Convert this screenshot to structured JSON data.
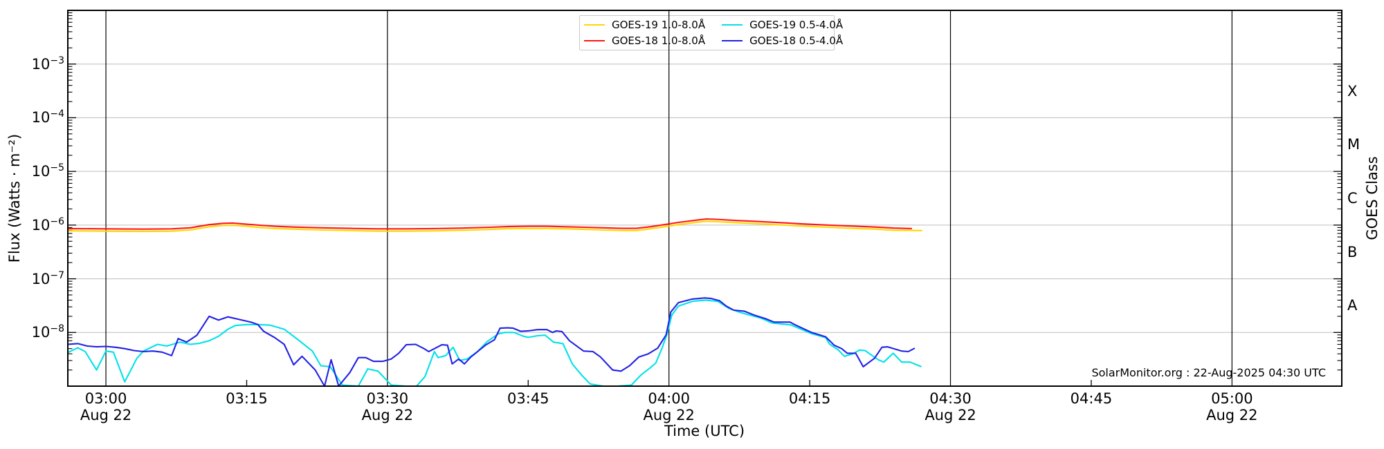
{
  "figure": {
    "background_color": "#ffffff",
    "annotation": "SolarMonitor.org : 22-Aug-2025 04:30 UTC"
  },
  "chart_data": {
    "type": "line",
    "title": "",
    "xlabel": "Time (UTC)",
    "ylabel": "Flux (Watts · m⁻²)",
    "ylabel_right": "GOES Class",
    "x_unit": "minutes after 03:00 UTC, 22 Aug 2025",
    "xlim_minutes": [
      -4.06,
      131.7
    ],
    "ylim": [
      1e-09,
      0.01
    ],
    "yscale": "log",
    "grid": {
      "vertical_gridline_color": "#000000",
      "horizontal_gridline_color": "#bdbdbd",
      "frame_color": "#000000"
    },
    "legend_position": "top-center",
    "x_ticks": [
      {
        "minutes": 0,
        "label": "03:00",
        "sub": "Aug 22",
        "gridline": true
      },
      {
        "minutes": 15,
        "label": "03:15",
        "sub": "",
        "gridline": false
      },
      {
        "minutes": 30,
        "label": "03:30",
        "sub": "Aug 22",
        "gridline": true
      },
      {
        "minutes": 45,
        "label": "03:45",
        "sub": "",
        "gridline": false
      },
      {
        "minutes": 60,
        "label": "04:00",
        "sub": "Aug 22",
        "gridline": true
      },
      {
        "minutes": 75,
        "label": "04:15",
        "sub": "",
        "gridline": false
      },
      {
        "minutes": 90,
        "label": "04:30",
        "sub": "Aug 22",
        "gridline": true
      },
      {
        "minutes": 105,
        "label": "04:45",
        "sub": "",
        "gridline": false
      },
      {
        "minutes": 120,
        "label": "05:00",
        "sub": "Aug 22",
        "gridline": true
      }
    ],
    "y_ticks": [
      {
        "exponent": -3,
        "label": "10⁻³",
        "exp_label": "−3"
      },
      {
        "exponent": -4,
        "label": "10⁻⁴",
        "exp_label": "−4"
      },
      {
        "exponent": -5,
        "label": "10⁻⁵",
        "exp_label": "−5"
      },
      {
        "exponent": -6,
        "label": "10⁻⁶",
        "exp_label": "−6"
      },
      {
        "exponent": -7,
        "label": "10⁻⁷",
        "exp_label": "−7"
      },
      {
        "exponent": -8,
        "label": "10⁻⁸",
        "exp_label": "−8"
      }
    ],
    "goes_classes": [
      {
        "label": "X",
        "center_exponent": -3.5
      },
      {
        "label": "M",
        "center_exponent": -4.5
      },
      {
        "label": "C",
        "center_exponent": -5.5
      },
      {
        "label": "B",
        "center_exponent": -6.5
      },
      {
        "label": "A",
        "center_exponent": -7.5
      }
    ],
    "series": [
      {
        "name": "GOES-19 1.0-8.0Å",
        "color": "#FFD700",
        "points": [
          [
            -4.1,
            7.8e-07
          ],
          [
            0,
            7.7e-07
          ],
          [
            4,
            7.6e-07
          ],
          [
            7,
            7.7e-07
          ],
          [
            9,
            8.1e-07
          ],
          [
            11,
            9.3e-07
          ],
          [
            12.5,
            9.8e-07
          ],
          [
            13.5,
            9.9e-07
          ],
          [
            15,
            9.5e-07
          ],
          [
            16.5,
            9e-07
          ],
          [
            18,
            8.6e-07
          ],
          [
            20,
            8.4e-07
          ],
          [
            23,
            8.1e-07
          ],
          [
            26,
            7.9e-07
          ],
          [
            29,
            7.7e-07
          ],
          [
            32,
            7.7e-07
          ],
          [
            35,
            7.8e-07
          ],
          [
            38,
            8e-07
          ],
          [
            41,
            8.3e-07
          ],
          [
            43,
            8.6e-07
          ],
          [
            45,
            8.6e-07
          ],
          [
            47,
            8.6e-07
          ],
          [
            49,
            8.5e-07
          ],
          [
            51,
            8.3e-07
          ],
          [
            53,
            8.1e-07
          ],
          [
            55,
            7.9e-07
          ],
          [
            56.5,
            7.9e-07
          ],
          [
            58,
            8.5e-07
          ],
          [
            59.5,
            9.3e-07
          ],
          [
            61,
            1.02e-06
          ],
          [
            63,
            1.13e-06
          ],
          [
            64,
            1.18e-06
          ],
          [
            65,
            1.16e-06
          ],
          [
            67,
            1.11e-06
          ],
          [
            69,
            1.07e-06
          ],
          [
            71,
            1.03e-06
          ],
          [
            74,
            9.6e-07
          ],
          [
            77,
            9.1e-07
          ],
          [
            80,
            8.6e-07
          ],
          [
            82,
            8.4e-07
          ],
          [
            84,
            8e-07
          ],
          [
            87,
            7.9e-07
          ]
        ]
      },
      {
        "name": "GOES-18 1.0-8.0Å",
        "color": "#FF1612",
        "points": [
          [
            -4.1,
            8.6e-07
          ],
          [
            0,
            8.5e-07
          ],
          [
            4,
            8.4e-07
          ],
          [
            7,
            8.5e-07
          ],
          [
            9,
            8.9e-07
          ],
          [
            11,
            1.02e-06
          ],
          [
            12.5,
            1.08e-06
          ],
          [
            13.5,
            1.09e-06
          ],
          [
            15,
            1.04e-06
          ],
          [
            16.5,
            9.9e-07
          ],
          [
            18,
            9.5e-07
          ],
          [
            20,
            9.2e-07
          ],
          [
            23,
            8.9e-07
          ],
          [
            26,
            8.7e-07
          ],
          [
            29,
            8.5e-07
          ],
          [
            32,
            8.5e-07
          ],
          [
            35,
            8.6e-07
          ],
          [
            38,
            8.8e-07
          ],
          [
            41,
            9.1e-07
          ],
          [
            43,
            9.4e-07
          ],
          [
            45,
            9.5e-07
          ],
          [
            47,
            9.5e-07
          ],
          [
            49,
            9.3e-07
          ],
          [
            51,
            9.1e-07
          ],
          [
            53,
            8.9e-07
          ],
          [
            55,
            8.7e-07
          ],
          [
            56.5,
            8.7e-07
          ],
          [
            58,
            9.3e-07
          ],
          [
            59.5,
            1.02e-06
          ],
          [
            61,
            1.12e-06
          ],
          [
            63,
            1.24e-06
          ],
          [
            64,
            1.3e-06
          ],
          [
            65,
            1.28e-06
          ],
          [
            67,
            1.22e-06
          ],
          [
            69,
            1.18e-06
          ],
          [
            71,
            1.13e-06
          ],
          [
            74,
            1.06e-06
          ],
          [
            77,
            1e-06
          ],
          [
            80,
            9.5e-07
          ],
          [
            82,
            9.2e-07
          ],
          [
            84,
            8.8e-07
          ],
          [
            85.9,
            8.6e-07
          ]
        ]
      },
      {
        "name": "GOES-19 0.5-4.0Å",
        "color": "#00E1E8",
        "points": [
          [
            -4.1,
            4.2e-09
          ],
          [
            -3,
            5.2e-09
          ],
          [
            -2.2,
            4.4e-09
          ],
          [
            -1,
            2e-09
          ],
          [
            0,
            4.5e-09
          ],
          [
            0.8,
            4.3e-09
          ],
          [
            2,
            1.2e-09
          ],
          [
            3.3,
            3.3e-09
          ],
          [
            4,
            4.5e-09
          ],
          [
            5.5,
            6e-09
          ],
          [
            6.5,
            5.6e-09
          ],
          [
            7.9,
            6.6e-09
          ],
          [
            9,
            6e-09
          ],
          [
            10,
            6.3e-09
          ],
          [
            11,
            7e-09
          ],
          [
            12,
            8.5e-09
          ],
          [
            13,
            1.15e-08
          ],
          [
            13.8,
            1.35e-08
          ],
          [
            15,
            1.4e-08
          ],
          [
            16.3,
            1.4e-08
          ],
          [
            17.5,
            1.37e-08
          ],
          [
            19,
            1.15e-08
          ],
          [
            20.4,
            7.5e-09
          ],
          [
            22,
            4.5e-09
          ],
          [
            22.9,
            2.4e-09
          ],
          [
            23.9,
            2.3e-09
          ],
          [
            25.2,
            1.05e-09
          ],
          [
            26.9,
            1e-09
          ],
          [
            27.9,
            2.1e-09
          ],
          [
            29,
            1.9e-09
          ],
          [
            30.4,
            1.05e-09
          ],
          [
            32,
            1e-09
          ],
          [
            33.1,
            1e-09
          ],
          [
            34,
            1.5e-09
          ],
          [
            35,
            4.4e-09
          ],
          [
            35.4,
            3.4e-09
          ],
          [
            36.2,
            3.7e-09
          ],
          [
            37,
            5.3e-09
          ],
          [
            37.7,
            3e-09
          ],
          [
            38.5,
            3.2e-09
          ],
          [
            39.6,
            4.4e-09
          ],
          [
            40.6,
            6.7e-09
          ],
          [
            41.8,
            9.4e-09
          ],
          [
            42.5,
            1e-08
          ],
          [
            43.5,
            1e-08
          ],
          [
            44.5,
            8.5e-09
          ],
          [
            45,
            8.1e-09
          ],
          [
            46,
            8.7e-09
          ],
          [
            46.8,
            8.9e-09
          ],
          [
            47.7,
            6.6e-09
          ],
          [
            48.7,
            6.2e-09
          ],
          [
            49.7,
            2.6e-09
          ],
          [
            50.7,
            1.6e-09
          ],
          [
            51.6,
            1.1e-09
          ],
          [
            53,
            1e-09
          ],
          [
            54.5,
            1e-09
          ],
          [
            56,
            1.05e-09
          ],
          [
            57,
            1.6e-09
          ],
          [
            58,
            2.2e-09
          ],
          [
            58.6,
            2.7e-09
          ],
          [
            59.3,
            5.3e-09
          ],
          [
            59.8,
            9.4e-09
          ],
          [
            60.3,
            2.1e-08
          ],
          [
            61,
            3.1e-08
          ],
          [
            62.5,
            3.8e-08
          ],
          [
            63.9,
            4e-08
          ],
          [
            65.2,
            3.8e-08
          ],
          [
            66.4,
            2.8e-08
          ],
          [
            67.6,
            2.35e-08
          ],
          [
            69.8,
            1.85e-08
          ],
          [
            71,
            1.5e-08
          ],
          [
            73,
            1.38e-08
          ],
          [
            75.2,
            9.5e-09
          ],
          [
            76.7,
            8e-09
          ],
          [
            77.1,
            6.1e-09
          ],
          [
            78,
            4.8e-09
          ],
          [
            78.7,
            3.6e-09
          ],
          [
            79.6,
            4e-09
          ],
          [
            80.3,
            4.7e-09
          ],
          [
            80.9,
            4.6e-09
          ],
          [
            82.3,
            3.1e-09
          ],
          [
            82.9,
            2.8e-09
          ],
          [
            83.9,
            4.1e-09
          ],
          [
            84.8,
            2.8e-09
          ],
          [
            85.7,
            2.8e-09
          ],
          [
            86.9,
            2.3e-09
          ]
        ]
      },
      {
        "name": "GOES-18 0.5-4.0Å",
        "color": "#2020E6",
        "points": [
          [
            -4.1,
            6e-09
          ],
          [
            -3,
            6.2e-09
          ],
          [
            -2,
            5.6e-09
          ],
          [
            -1,
            5.4e-09
          ],
          [
            0,
            5.5e-09
          ],
          [
            1,
            5.3e-09
          ],
          [
            2,
            5e-09
          ],
          [
            3,
            4.6e-09
          ],
          [
            4,
            4.4e-09
          ],
          [
            5,
            4.5e-09
          ],
          [
            6,
            4.3e-09
          ],
          [
            7,
            3.7e-09
          ],
          [
            7.7,
            7.7e-09
          ],
          [
            8.6,
            6.6e-09
          ],
          [
            9.7,
            8.9e-09
          ],
          [
            11,
            2e-08
          ],
          [
            12,
            1.7e-08
          ],
          [
            13,
            1.95e-08
          ],
          [
            14.5,
            1.7e-08
          ],
          [
            15.5,
            1.55e-08
          ],
          [
            16.2,
            1.4e-08
          ],
          [
            16.8,
            1.05e-08
          ],
          [
            18,
            8e-09
          ],
          [
            19,
            6e-09
          ],
          [
            20,
            2.5e-09
          ],
          [
            20.9,
            3.6e-09
          ],
          [
            22.3,
            2e-09
          ],
          [
            23.3,
            1e-09
          ],
          [
            24,
            3.1e-09
          ],
          [
            24.8,
            1e-09
          ],
          [
            26,
            1.8e-09
          ],
          [
            26.9,
            3.4e-09
          ],
          [
            27.7,
            3.4e-09
          ],
          [
            28.5,
            2.9e-09
          ],
          [
            29.5,
            2.9e-09
          ],
          [
            30.4,
            3.2e-09
          ],
          [
            31.2,
            4.1e-09
          ],
          [
            32,
            5.9e-09
          ],
          [
            33,
            6e-09
          ],
          [
            33.9,
            5e-09
          ],
          [
            34.4,
            4.4e-09
          ],
          [
            35.8,
            5.9e-09
          ],
          [
            36.4,
            5.8e-09
          ],
          [
            36.9,
            2.6e-09
          ],
          [
            37.6,
            3.2e-09
          ],
          [
            38.2,
            2.6e-09
          ],
          [
            38.9,
            3.5e-09
          ],
          [
            40.5,
            5.9e-09
          ],
          [
            41.4,
            7.3e-09
          ],
          [
            42,
            1.2e-08
          ],
          [
            42.8,
            1.22e-08
          ],
          [
            43.4,
            1.2e-08
          ],
          [
            44.2,
            1.05e-08
          ],
          [
            45,
            1.07e-08
          ],
          [
            46,
            1.13e-08
          ],
          [
            47,
            1.13e-08
          ],
          [
            47.6,
            1e-08
          ],
          [
            48,
            1.07e-08
          ],
          [
            48.6,
            1.04e-08
          ],
          [
            49.4,
            7e-09
          ],
          [
            50.9,
            4.5e-09
          ],
          [
            51.9,
            4.4e-09
          ],
          [
            52.7,
            3.5e-09
          ],
          [
            54,
            2e-09
          ],
          [
            54.9,
            1.9e-09
          ],
          [
            55.8,
            2.4e-09
          ],
          [
            56.8,
            3.5e-09
          ],
          [
            57.8,
            4e-09
          ],
          [
            58.8,
            5.1e-09
          ],
          [
            59.7,
            9e-09
          ],
          [
            60.2,
            2.4e-08
          ],
          [
            61,
            3.6e-08
          ],
          [
            62.5,
            4.2e-08
          ],
          [
            63.8,
            4.4e-08
          ],
          [
            64.5,
            4.3e-08
          ],
          [
            65.4,
            3.9e-08
          ],
          [
            66.1,
            3.1e-08
          ],
          [
            66.9,
            2.6e-08
          ],
          [
            68,
            2.5e-08
          ],
          [
            69.1,
            2.1e-08
          ],
          [
            70.3,
            1.8e-08
          ],
          [
            71.2,
            1.56e-08
          ],
          [
            72.9,
            1.56e-08
          ],
          [
            73.4,
            1.4e-08
          ],
          [
            75.2,
            1e-08
          ],
          [
            76.7,
            8.3e-09
          ],
          [
            77.6,
            5.8e-09
          ],
          [
            78.4,
            5e-09
          ],
          [
            79,
            4.1e-09
          ],
          [
            79.9,
            4.1e-09
          ],
          [
            80.7,
            2.3e-09
          ],
          [
            81.9,
            3.3e-09
          ],
          [
            82.7,
            5.3e-09
          ],
          [
            83.3,
            5.4e-09
          ],
          [
            84.8,
            4.5e-09
          ],
          [
            85.5,
            4.4e-09
          ],
          [
            86.2,
            5.1e-09
          ]
        ]
      }
    ]
  }
}
